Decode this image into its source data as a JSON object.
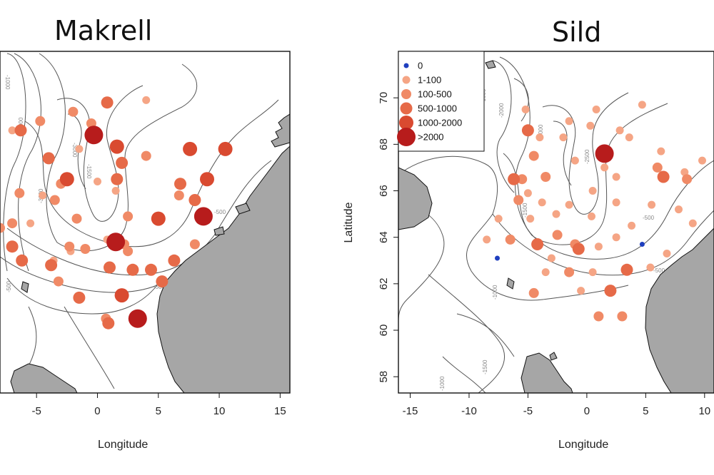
{
  "chart_data": [
    {
      "type": "scatter",
      "title": "Makrell",
      "xlabel": "Longitude",
      "ylabel": "",
      "xlim": [
        -8.0,
        15.8
      ],
      "ylim": [
        57.3,
        72.0
      ],
      "x_ticks": [
        "-5",
        "0",
        "5",
        "10",
        "15"
      ],
      "y_ticks": [],
      "contour_labels": [
        "-1000",
        "-2000",
        "-3000",
        "-1500",
        "-3000",
        "-500",
        "-500",
        "-500"
      ],
      "series": [
        {
          "name": "0",
          "points": []
        },
        {
          "name": "1-100",
          "points": [
            [
              4.0,
              69.9
            ],
            [
              -1.5,
              67.8
            ],
            [
              0.0,
              66.4
            ],
            [
              -7.0,
              68.6
            ],
            [
              -4.5,
              65.8
            ],
            [
              0.8,
              63.9
            ],
            [
              1.5,
              66.0
            ],
            [
              -2.2,
              63.4
            ],
            [
              -3.6,
              63.0
            ],
            [
              -5.5,
              64.6
            ]
          ]
        },
        {
          "name": "100-500",
          "points": [
            [
              4.0,
              67.5
            ],
            [
              -0.5,
              68.9
            ],
            [
              -4.7,
              69.0
            ],
            [
              -2.0,
              69.4
            ],
            [
              -3.5,
              65.6
            ],
            [
              2.5,
              64.9
            ],
            [
              -6.4,
              65.9
            ],
            [
              -3.0,
              66.3
            ],
            [
              -1.7,
              64.8
            ],
            [
              2.5,
              63.4
            ],
            [
              6.7,
              65.8
            ],
            [
              8.0,
              63.7
            ],
            [
              -1.0,
              63.5
            ],
            [
              -2.3,
              63.6
            ],
            [
              -7.0,
              64.6
            ],
            [
              -8.0,
              64.4
            ],
            [
              -3.2,
              62.1
            ],
            [
              2.2,
              63.7
            ],
            [
              0.7,
              60.5
            ]
          ]
        },
        {
          "name": "500-1000",
          "points": [
            [
              0.8,
              69.8
            ],
            [
              -6.3,
              68.6
            ],
            [
              -4.0,
              67.4
            ],
            [
              2.0,
              67.2
            ],
            [
              1.6,
              66.5
            ],
            [
              6.8,
              66.3
            ],
            [
              8.0,
              65.6
            ],
            [
              -7.0,
              63.6
            ],
            [
              -6.2,
              63.0
            ],
            [
              -3.8,
              62.8
            ],
            [
              1.0,
              62.7
            ],
            [
              2.9,
              62.6
            ],
            [
              4.4,
              62.6
            ],
            [
              -1.5,
              61.4
            ],
            [
              5.3,
              62.1
            ],
            [
              6.3,
              63.0
            ],
            [
              0.9,
              60.3
            ]
          ]
        },
        {
          "name": "1000-2000",
          "points": [
            [
              1.6,
              67.9
            ],
            [
              7.6,
              67.8
            ],
            [
              10.5,
              67.8
            ],
            [
              -2.5,
              66.5
            ],
            [
              9.0,
              66.5
            ],
            [
              5.0,
              64.8
            ],
            [
              2.0,
              61.5
            ]
          ]
        },
        {
          "name": ">2000",
          "points": [
            [
              -0.3,
              68.4
            ],
            [
              8.7,
              64.9
            ],
            [
              1.5,
              63.8
            ],
            [
              3.3,
              60.5
            ]
          ]
        }
      ]
    },
    {
      "type": "scatter",
      "title": "Sild",
      "xlabel": "Longitude",
      "ylabel": "Latitude",
      "xlim": [
        -16.0,
        10.8
      ],
      "ylim": [
        57.3,
        72.0
      ],
      "x_ticks": [
        "-15",
        "-10",
        "-5",
        "0",
        "5",
        "10"
      ],
      "y_ticks": [
        "58",
        "60",
        "62",
        "64",
        "66",
        "68",
        "70"
      ],
      "contour_labels": [
        "-1000",
        "-2000",
        "-3000",
        "-2500",
        "-1500",
        "-1000",
        "-1500",
        "-1000",
        "-500",
        "-500"
      ],
      "legend": {
        "position": "top-left",
        "entries": [
          {
            "label": "0",
            "color": "#1f3fbf"
          },
          {
            "label": "1-100",
            "color": "#f5a585"
          },
          {
            "label": "100-500",
            "color": "#f08a66"
          },
          {
            "label": "500-1000",
            "color": "#e66a48"
          },
          {
            "label": "1000-2000",
            "color": "#d94a30"
          },
          {
            "label": ">2000",
            "color": "#b71c1c"
          }
        ]
      },
      "series": [
        {
          "name": "0",
          "points": [
            [
              -7.6,
              63.1
            ],
            [
              4.7,
              63.7
            ]
          ]
        },
        {
          "name": "1-100",
          "points": [
            [
              4.7,
              69.7
            ],
            [
              2.8,
              68.6
            ],
            [
              -4.0,
              68.3
            ],
            [
              -2.0,
              68.3
            ],
            [
              0.8,
              69.5
            ],
            [
              1.5,
              67.0
            ],
            [
              3.6,
              68.3
            ],
            [
              -1.0,
              67.3
            ],
            [
              0.5,
              66.0
            ],
            [
              -1.5,
              65.4
            ],
            [
              0.4,
              64.9
            ],
            [
              2.5,
              65.5
            ],
            [
              3.8,
              64.5
            ],
            [
              5.5,
              65.4
            ],
            [
              -7.5,
              64.8
            ],
            [
              -8.5,
              63.9
            ],
            [
              -3.0,
              63.1
            ],
            [
              1.0,
              63.6
            ],
            [
              2.5,
              64.0
            ],
            [
              5.4,
              62.7
            ],
            [
              -0.5,
              61.7
            ],
            [
              -3.5,
              62.5
            ],
            [
              0.5,
              62.5
            ],
            [
              6.8,
              63.3
            ],
            [
              7.8,
              65.2
            ],
            [
              9.0,
              64.6
            ],
            [
              8.3,
              66.8
            ],
            [
              9.8,
              67.3
            ],
            [
              -4.8,
              64.8
            ],
            [
              -3.8,
              65.5
            ],
            [
              -2.6,
              65.0
            ],
            [
              -5.0,
              65.9
            ],
            [
              0.3,
              68.8
            ],
            [
              2.5,
              66.6
            ],
            [
              6.3,
              67.7
            ],
            [
              -1.5,
              69.0
            ],
            [
              -5.2,
              69.5
            ]
          ]
        },
        {
          "name": "100-500",
          "points": [
            [
              -5.8,
              65.6
            ],
            [
              -3.5,
              66.6
            ],
            [
              -4.5,
              67.5
            ],
            [
              -6.5,
              63.9
            ],
            [
              -2.5,
              64.1
            ],
            [
              -1.0,
              63.7
            ],
            [
              -4.5,
              61.6
            ],
            [
              -1.5,
              62.5
            ],
            [
              1.0,
              60.6
            ],
            [
              3.0,
              60.6
            ],
            [
              6.0,
              67.0
            ],
            [
              8.5,
              66.5
            ],
            [
              -5.5,
              66.5
            ]
          ]
        },
        {
          "name": "500-1000",
          "points": [
            [
              -5.0,
              68.6
            ],
            [
              -6.2,
              66.5
            ],
            [
              -4.2,
              63.7
            ],
            [
              -0.7,
              63.5
            ],
            [
              2.0,
              61.7
            ],
            [
              3.4,
              62.6
            ],
            [
              6.5,
              66.6
            ]
          ]
        },
        {
          "name": "1000-2000",
          "points": []
        },
        {
          "name": ">2000",
          "points": [
            [
              1.5,
              67.6
            ]
          ]
        }
      ]
    }
  ]
}
